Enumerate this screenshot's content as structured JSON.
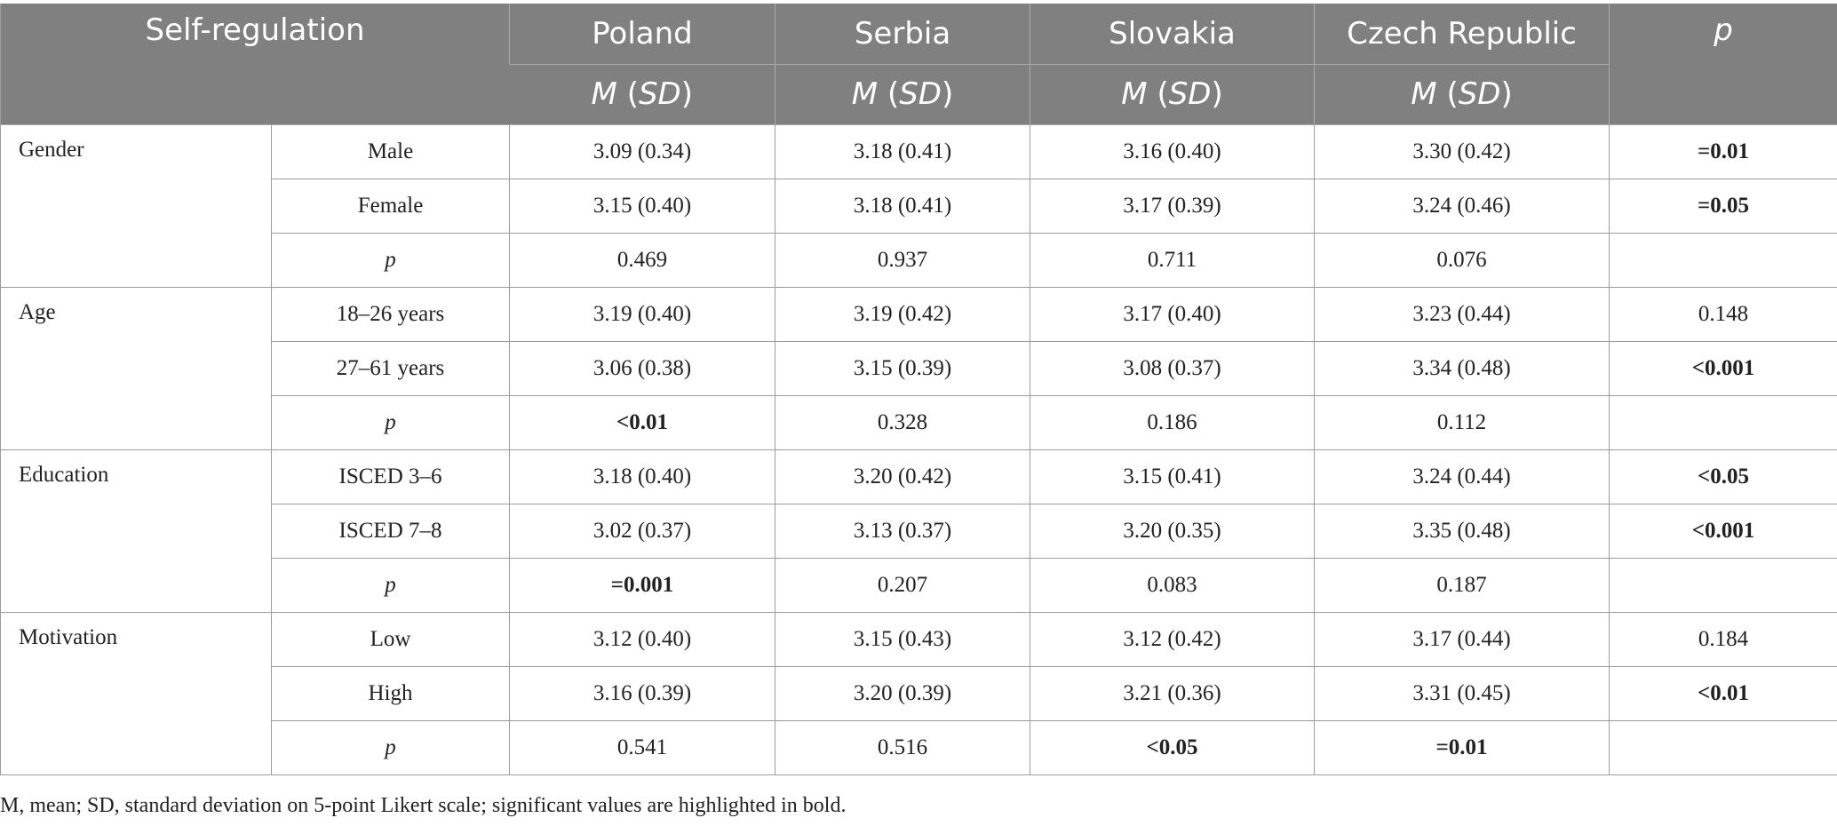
{
  "header": {
    "title": "Self-regulation",
    "countries": [
      "Poland",
      "Serbia",
      "Slovakia",
      "Czech Republic"
    ],
    "p_label": "p",
    "stat_m": "M",
    "stat_sd": "SD"
  },
  "rows": [
    {
      "group": "Gender",
      "sub": "Male",
      "sub_italic": false,
      "cells": [
        "3.09 (0.34)",
        "3.18 (0.41)",
        "3.16 (0.40)",
        "3.30 (0.42)"
      ],
      "cells_bold": [
        false,
        false,
        false,
        false
      ],
      "p": "=0.01",
      "p_bold": true
    },
    {
      "group": "",
      "sub": "Female",
      "sub_italic": false,
      "cells": [
        "3.15 (0.40)",
        "3.18 (0.41)",
        "3.17 (0.39)",
        "3.24 (0.46)"
      ],
      "cells_bold": [
        false,
        false,
        false,
        false
      ],
      "p": "=0.05",
      "p_bold": true
    },
    {
      "group": "",
      "sub": "p",
      "sub_italic": true,
      "cells": [
        "0.469",
        "0.937",
        "0.711",
        "0.076"
      ],
      "cells_bold": [
        false,
        false,
        false,
        false
      ],
      "p": "",
      "p_bold": false
    },
    {
      "group": "Age",
      "sub": "18–26 years",
      "sub_italic": false,
      "cells": [
        "3.19 (0.40)",
        "3.19 (0.42)",
        "3.17 (0.40)",
        "3.23 (0.44)"
      ],
      "cells_bold": [
        false,
        false,
        false,
        false
      ],
      "p": "0.148",
      "p_bold": false
    },
    {
      "group": "",
      "sub": "27–61 years",
      "sub_italic": false,
      "cells": [
        "3.06 (0.38)",
        "3.15 (0.39)",
        "3.08 (0.37)",
        "3.34 (0.48)"
      ],
      "cells_bold": [
        false,
        false,
        false,
        false
      ],
      "p": "<0.001",
      "p_bold": true
    },
    {
      "group": "",
      "sub": "p",
      "sub_italic": true,
      "cells": [
        "<0.01",
        "0.328",
        "0.186",
        "0.112"
      ],
      "cells_bold": [
        true,
        false,
        false,
        false
      ],
      "p": "",
      "p_bold": false
    },
    {
      "group": "Education",
      "sub": "ISCED 3–6",
      "sub_italic": false,
      "cells": [
        "3.18 (0.40)",
        "3.20 (0.42)",
        "3.15 (0.41)",
        "3.24 (0.44)"
      ],
      "cells_bold": [
        false,
        false,
        false,
        false
      ],
      "p": "<0.05",
      "p_bold": true
    },
    {
      "group": "",
      "sub": "ISCED 7–8",
      "sub_italic": false,
      "cells": [
        "3.02 (0.37)",
        "3.13 (0.37)",
        "3.20 (0.35)",
        "3.35 (0.48)"
      ],
      "cells_bold": [
        false,
        false,
        false,
        false
      ],
      "p": "<0.001",
      "p_bold": true
    },
    {
      "group": "",
      "sub": "p",
      "sub_italic": true,
      "cells": [
        "=0.001",
        "0.207",
        "0.083",
        "0.187"
      ],
      "cells_bold": [
        true,
        false,
        false,
        false
      ],
      "p": "",
      "p_bold": false
    },
    {
      "group": "Motivation",
      "sub": "Low",
      "sub_italic": false,
      "cells": [
        "3.12 (0.40)",
        "3.15 (0.43)",
        "3.12 (0.42)",
        "3.17 (0.44)"
      ],
      "cells_bold": [
        false,
        false,
        false,
        false
      ],
      "p": "0.184",
      "p_bold": false
    },
    {
      "group": "",
      "sub": "High",
      "sub_italic": false,
      "cells": [
        "3.16 (0.39)",
        "3.20 (0.39)",
        "3.21 (0.36)",
        "3.31 (0.45)"
      ],
      "cells_bold": [
        false,
        false,
        false,
        false
      ],
      "p": "<0.01",
      "p_bold": true
    },
    {
      "group": "",
      "sub": "p",
      "sub_italic": true,
      "cells": [
        "0.541",
        "0.516",
        "<0.05",
        "=0.01"
      ],
      "cells_bold": [
        false,
        false,
        true,
        true
      ],
      "p": "",
      "p_bold": false
    }
  ],
  "footnote": "M, mean; SD, standard deviation on 5-point Likert scale; significant values are highlighted in bold.",
  "colors": {
    "header_bg": "#7f807f",
    "header_text": "#ffffff",
    "grid": "#9c9c9c"
  }
}
